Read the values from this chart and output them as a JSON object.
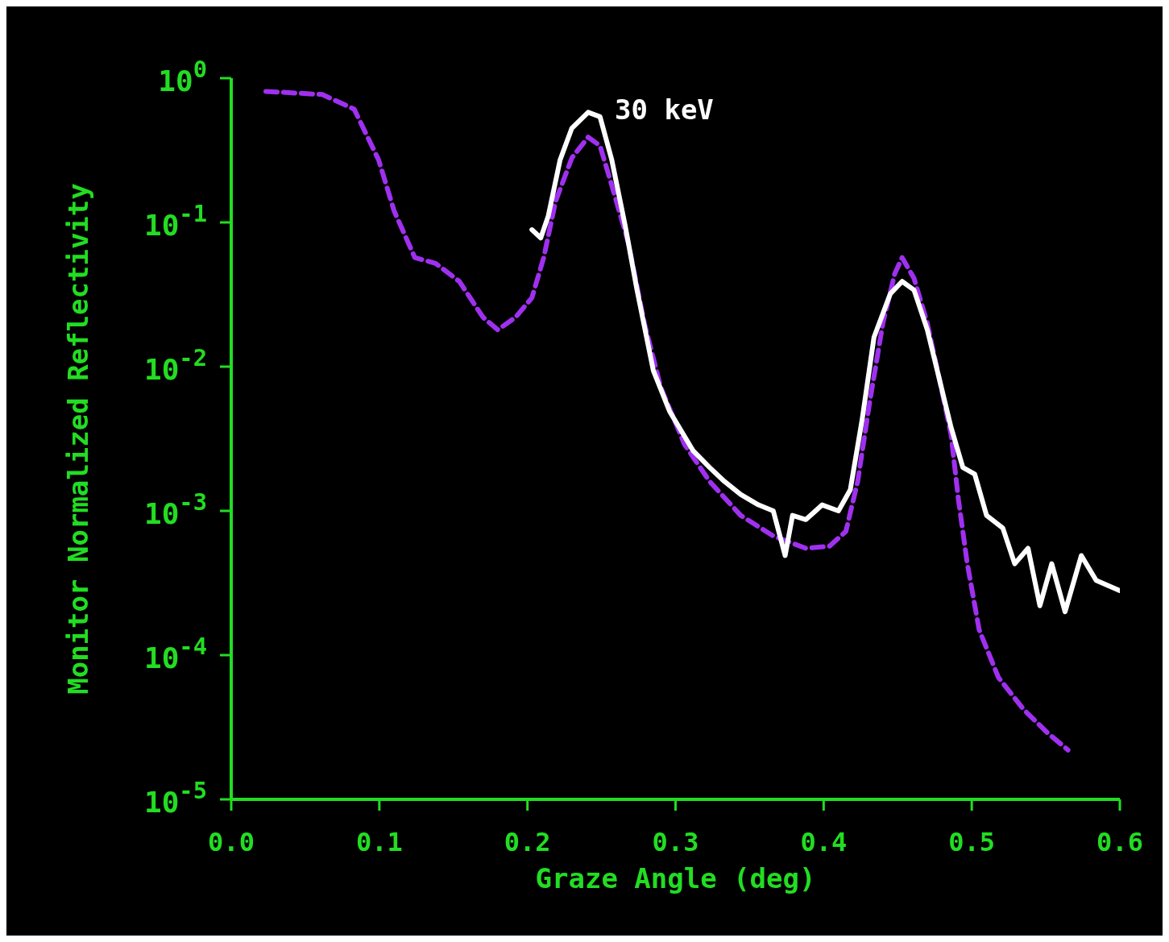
{
  "chart_data": {
    "type": "line",
    "xlabel": "Graze Angle (deg)",
    "ylabel": "Monitor Normalized Reflectivity",
    "log": "y",
    "grid": false,
    "legend": false,
    "marker": "none",
    "xlim": [
      0,
      0.6
    ],
    "xticks": [
      {
        "value": 0,
        "label": "0.0"
      },
      0.1,
      0.2,
      0.3,
      0.4,
      0.5,
      0.6
    ],
    "ylim": [
      1e-05,
      1
    ],
    "yticks": [
      {
        "value": 1,
        "label": "10$^{0}$"
      },
      {
        "value": 0.1,
        "label": "10$^{-1}$"
      },
      {
        "value": 0.01,
        "label": "10$^{-2}$"
      },
      {
        "value": 0.001,
        "label": "10$^{-3}$"
      },
      {
        "value": 0.0001,
        "label": "10$^{-4}$"
      },
      {
        "value": 1e-05,
        "label": "10$^{-5}$"
      }
    ],
    "annotations": [
      "30 keV"
    ],
    "series": [
      {
        "color": "#a030f0",
        "line_style": "dashed",
        "x": [
          0.0234,
          0.0615,
          0.083,
          0.0996,
          0.11,
          0.124,
          0.138,
          0.154,
          0.17,
          0.18,
          0.192,
          0.203,
          0.211,
          0.219,
          0.23,
          0.241,
          0.249,
          0.257,
          0.268,
          0.279,
          0.29,
          0.306,
          0.323,
          0.344,
          0.366,
          0.388,
          0.404,
          0.415,
          0.423,
          0.431,
          0.44,
          0.448,
          0.453,
          0.461,
          0.47,
          0.478,
          0.486,
          0.491,
          0.497,
          0.505,
          0.518,
          0.535,
          0.551,
          0.565
        ],
        "values": [
          0.81,
          0.77,
          0.61,
          0.27,
          0.12,
          0.057,
          0.052,
          0.039,
          0.022,
          0.018,
          0.022,
          0.03,
          0.057,
          0.14,
          0.28,
          0.39,
          0.34,
          0.18,
          0.073,
          0.02,
          0.0072,
          0.0029,
          0.0016,
          0.00093,
          0.00067,
          0.00055,
          0.00057,
          0.00072,
          0.0016,
          0.0056,
          0.02,
          0.044,
          0.057,
          0.041,
          0.02,
          0.0083,
          0.0034,
          0.0012,
          0.00043,
          0.00015,
          7e-05,
          4.2e-05,
          2.9e-05,
          2.2e-05
        ]
      },
      {
        "color": "#ffffff",
        "line_style": "solid",
        "x": [
          0.203,
          0.209,
          0.214,
          0.222,
          0.23,
          0.241,
          0.249,
          0.257,
          0.266,
          0.274,
          0.285,
          0.296,
          0.312,
          0.323,
          0.333,
          0.344,
          0.356,
          0.366,
          0.374,
          0.379,
          0.388,
          0.399,
          0.41,
          0.418,
          0.426,
          0.434,
          0.445,
          0.453,
          0.461,
          0.47,
          0.478,
          0.486,
          0.494,
          0.502,
          0.51,
          0.521,
          0.529,
          0.538,
          0.546,
          0.554,
          0.563,
          0.574,
          0.584,
          0.6
        ],
        "values": [
          0.089,
          0.078,
          0.11,
          0.27,
          0.45,
          0.58,
          0.54,
          0.27,
          0.095,
          0.034,
          0.0094,
          0.0049,
          0.0026,
          0.002,
          0.0016,
          0.0013,
          0.0011,
          0.001,
          0.00049,
          0.00093,
          0.00087,
          0.0011,
          0.001,
          0.0014,
          0.0043,
          0.016,
          0.032,
          0.039,
          0.034,
          0.018,
          0.0083,
          0.0038,
          0.002,
          0.0018,
          0.00093,
          0.00076,
          0.00043,
          0.00055,
          0.00022,
          0.00043,
          0.0002,
          0.00049,
          0.00033,
          0.00028
        ]
      }
    ]
  }
}
